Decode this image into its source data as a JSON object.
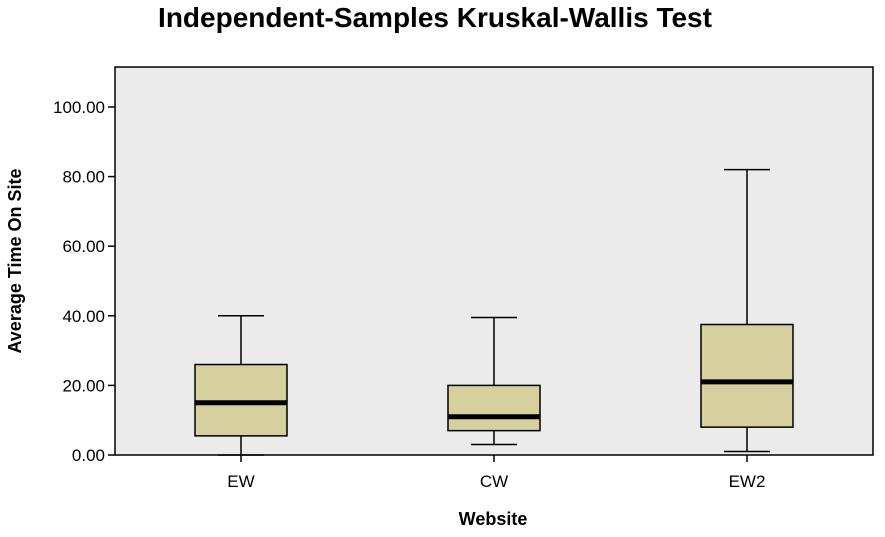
{
  "chart_data": {
    "type": "boxplot",
    "title": "Independent-Samples Kruskal-Wallis Test",
    "xlabel": "Website",
    "ylabel": "Average Time On Site",
    "ylim": [
      0,
      110
    ],
    "yticks": [
      "0.00",
      "20.00",
      "40.00",
      "60.00",
      "80.00",
      "100.00"
    ],
    "ytick_values": [
      0,
      20,
      40,
      60,
      80,
      100
    ],
    "categories": [
      "EW",
      "CW",
      "EW2"
    ],
    "boxes": [
      {
        "category": "EW",
        "min": 0.0,
        "q1": 5.5,
        "median": 15.0,
        "q3": 26.0,
        "max": 40.0
      },
      {
        "category": "CW",
        "min": 3.0,
        "q1": 7.0,
        "median": 11.0,
        "q3": 20.0,
        "max": 39.5
      },
      {
        "category": "EW2",
        "min": 1.0,
        "q1": 8.0,
        "median": 21.0,
        "q3": 37.5,
        "max": 82.0
      }
    ],
    "grid": false,
    "colors": {
      "plot_background": "#ebebeb",
      "box_fill": "#d5d09e",
      "stroke": "#000000"
    }
  }
}
